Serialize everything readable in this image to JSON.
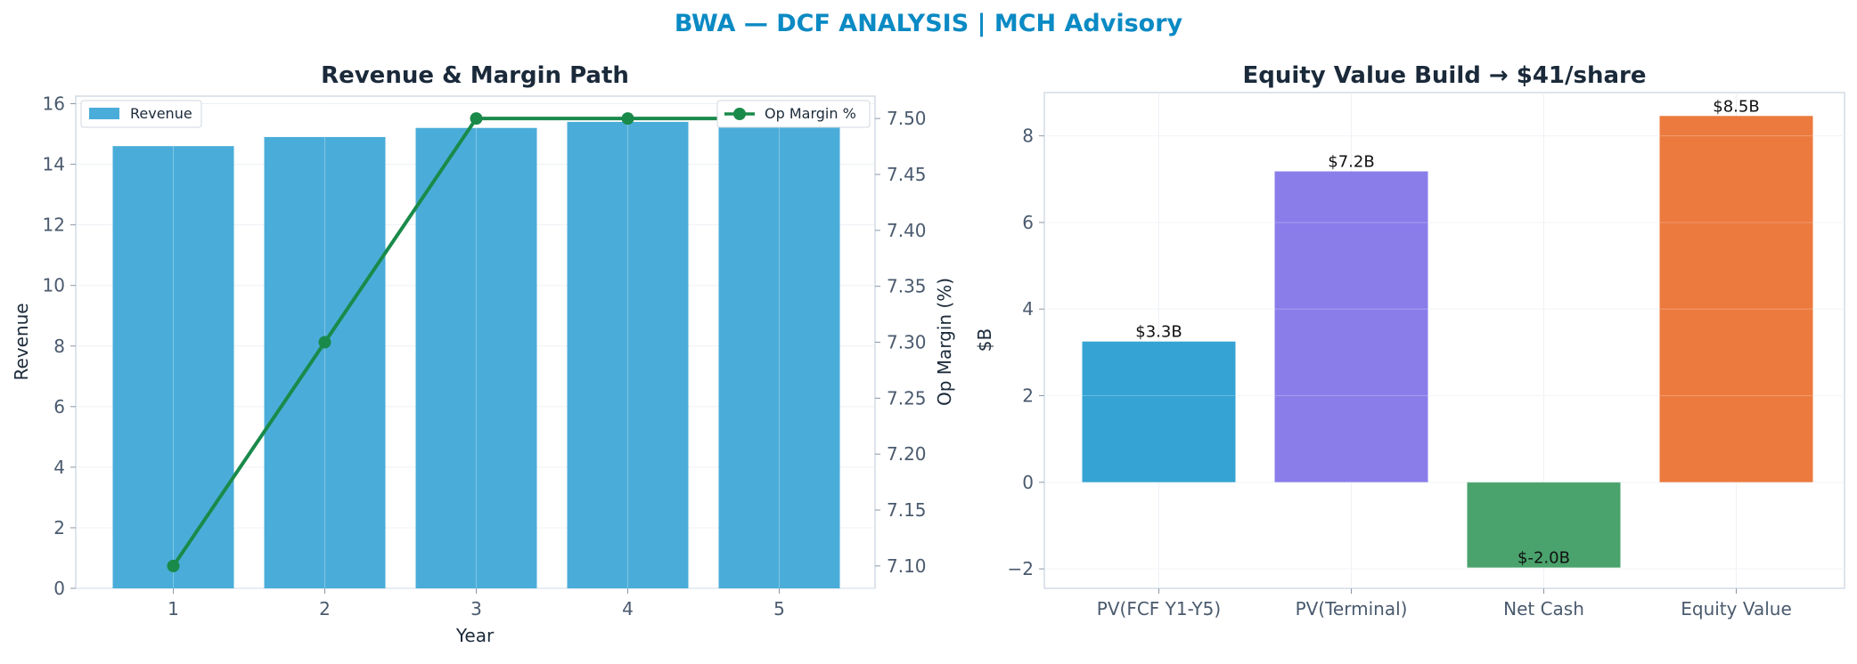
{
  "header": {
    "title": "BWA — DCF ANALYSIS | MCH Advisory"
  },
  "colors": {
    "title": "#0b8ac4",
    "revenue_bar": "#4aadd9",
    "op_margin_line": "#1a8a4a",
    "pv_fcf": "#35a3d4",
    "pv_terminal": "#8a7dea",
    "net_cash": "#4aa36c",
    "equity_value": "#ec7a3e"
  },
  "chart_data": [
    {
      "type": "bar",
      "title": "Revenue & Margin Path",
      "xlabel": "Year",
      "ylabel": "Revenue",
      "y2label": "Op Margin (%)",
      "categories": [
        "1",
        "2",
        "3",
        "4",
        "5"
      ],
      "series": [
        {
          "name": "Revenue",
          "type": "bar",
          "axis": "left",
          "values": [
            14.6,
            14.9,
            15.2,
            15.4,
            15.5
          ]
        },
        {
          "name": "Op Margin %",
          "type": "line",
          "axis": "right",
          "values": [
            7.1,
            7.3,
            7.5,
            7.5,
            7.5
          ]
        }
      ],
      "ylim": [
        0,
        16.25
      ],
      "yticks": [
        0,
        2,
        4,
        6,
        8,
        10,
        12,
        14,
        16
      ],
      "y2lim": [
        7.08,
        7.52
      ],
      "y2ticks": [
        "7.10",
        "7.15",
        "7.20",
        "7.25",
        "7.30",
        "7.35",
        "7.40",
        "7.45",
        "7.50"
      ],
      "grid": true,
      "legend": [
        "upper-left",
        "upper-right"
      ]
    },
    {
      "type": "bar",
      "title": "Equity Value Build → $41/share",
      "xlabel": "",
      "ylabel": "$B",
      "categories": [
        "PV(FCF Y1-Y5)",
        "PV(Terminal)",
        "Net Cash",
        "Equity Value"
      ],
      "values": [
        3.25,
        7.18,
        -1.97,
        8.46
      ],
      "data_labels": [
        "$3.3B",
        "$7.2B",
        "$-2.0B",
        "$8.5B"
      ],
      "ylim": [
        -2.45,
        9.0
      ],
      "yticks": [
        "−2",
        "0",
        "2",
        "4",
        "6",
        "8"
      ],
      "grid": true
    }
  ]
}
